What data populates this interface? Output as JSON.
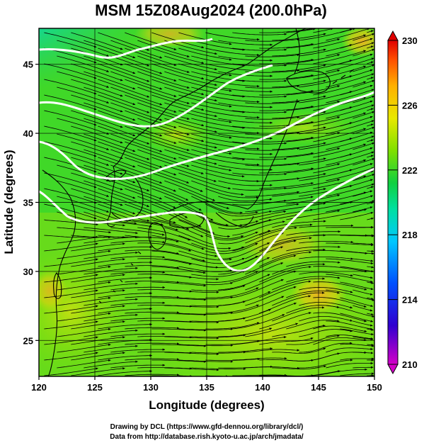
{
  "figure": {
    "title": "MSM 15Z08Aug2024 (200.0hPa)",
    "xlabel": "Longitude (degrees)",
    "ylabel": "Latitude  (degrees)",
    "credit_line1": "Drawing by DCL (https://www.gfd-dennou.org/library/dcl/)",
    "credit_line2": "Data from http://database.rish.kyoto-u.ac.jp/arch/jmadata/"
  },
  "map": {
    "lon_range": [
      120,
      150
    ],
    "lat_range": [
      22.4,
      47.6
    ],
    "lon_ticks": [
      "120",
      "125",
      "130",
      "135",
      "140",
      "145",
      "150"
    ],
    "lat_ticks": [
      "25",
      "30",
      "35",
      "40",
      "45"
    ],
    "grid": true,
    "field": "streamlines over temperature shading"
  },
  "colorbar": {
    "range": [
      210,
      230
    ],
    "tick_labels": [
      "230",
      "226",
      "222",
      "218",
      "214",
      "210"
    ],
    "colors": [
      "#d400c8",
      "#2a00d4",
      "#0040ff",
      "#00c8ff",
      "#00e0a0",
      "#10d040",
      "#80e000",
      "#e8e800",
      "#ffb000",
      "#ff5000",
      "#e00000"
    ]
  }
}
